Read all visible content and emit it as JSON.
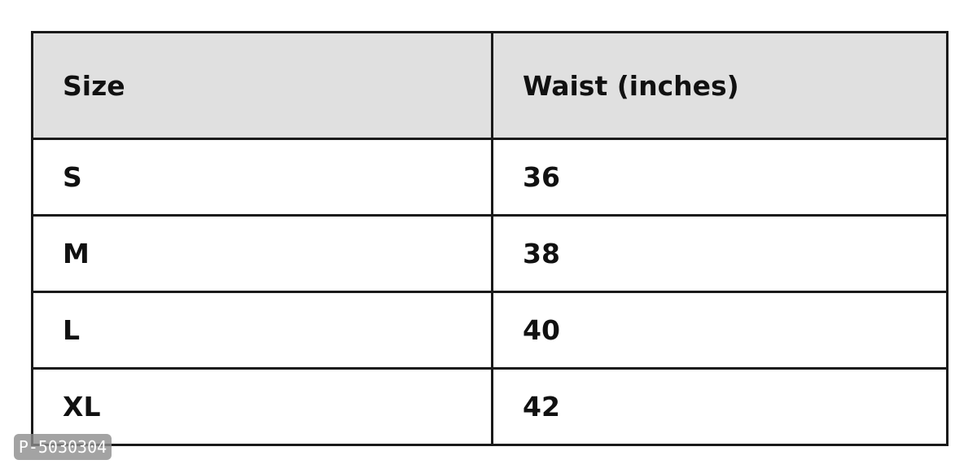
{
  "table": {
    "headers": [
      "Size",
      "Waist (inches)"
    ],
    "rows": [
      [
        "S",
        "36"
      ],
      [
        "M",
        "38"
      ],
      [
        "L",
        "40"
      ],
      [
        "XL",
        "42"
      ]
    ]
  },
  "watermark": "P-5030304"
}
